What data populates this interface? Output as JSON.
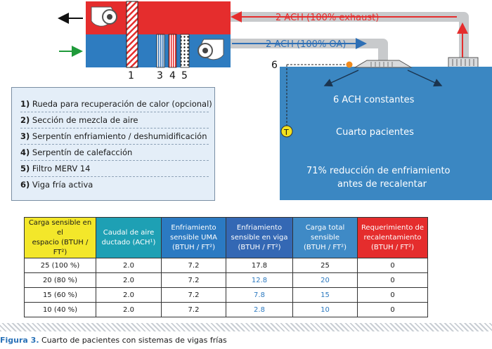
{
  "diagram": {
    "exhaust_label": "2 ACH (100% exhaust)",
    "oa_label": "2 ACH (100% OA)",
    "component_numbers": [
      "1",
      "3",
      "4",
      "5"
    ],
    "beam_number": "6",
    "room_constant_label": "6 ACH constantes",
    "room_name": "Cuarto pacientes",
    "room_reduction_line1": "71% reducción de enfriamiento",
    "room_reduction_line2": "antes de recalentar",
    "thermostat_label": "T"
  },
  "legend": [
    {
      "num": "1)",
      "text": "Rueda para recuperación de calor (opcional)"
    },
    {
      "num": "2)",
      "text": "Sección de mezcla de aire"
    },
    {
      "num": "3)",
      "text": "Serpentín enfriamiento / deshumidificación"
    },
    {
      "num": "4)",
      "text": "Serpentín de calefacción"
    },
    {
      "num": "5)",
      "text": "Filtro MERV 14"
    },
    {
      "num": "6)",
      "text": "Viga fría activa"
    }
  ],
  "table": {
    "headers": [
      {
        "line1": "Carga sensible en el",
        "line2": "espacio (BTUH / FT²)",
        "color": "#f3e72a"
      },
      {
        "line1": "Caudal de aire",
        "line2": "ductado (ACH¹)",
        "color": "#1ea0b4"
      },
      {
        "line1": "Enfriamiento",
        "line2": "sensible UMA",
        "line3": "(BTUH / FT²)",
        "color": "#2b7ac2"
      },
      {
        "line1": "Enfriamiento",
        "line2": "sensible en viga",
        "line3": "(BTUH / FT²)",
        "color": "#3468b4"
      },
      {
        "line1": "Carga total",
        "line2": "sensible",
        "line3": "(BTUH / FT²)",
        "color": "#3f8ac6"
      },
      {
        "line1": "Requerimiento de",
        "line2": "recalentamiento",
        "line3": "(BTUH / FT²)",
        "color": "#e52d2d"
      }
    ],
    "rows": [
      [
        "25 (100 %)",
        "2.0",
        "7.2",
        "17.8",
        "25",
        "0"
      ],
      [
        "20 (80 %)",
        "2.0",
        "7.2",
        "12.8",
        "20",
        "0"
      ],
      [
        "15 (60 %)",
        "2.0",
        "7.2",
        "7.8",
        "15",
        "0"
      ],
      [
        "10 (40 %)",
        "2.0",
        "7.2",
        "2.8",
        "10",
        "0"
      ]
    ]
  },
  "caption": {
    "figure_label": "Figura 3.",
    "text": " Cuarto de pacientes con sistemas de vigas frías"
  },
  "colors": {
    "ahu_red": "#e52d2d",
    "ahu_blue": "#2e7cc0",
    "room_fill": "#3b87c2",
    "duct_gray": "#c8cacc",
    "exhaust_arrow": "#e52d2d",
    "oa_arrow": "#2e6fb5"
  }
}
